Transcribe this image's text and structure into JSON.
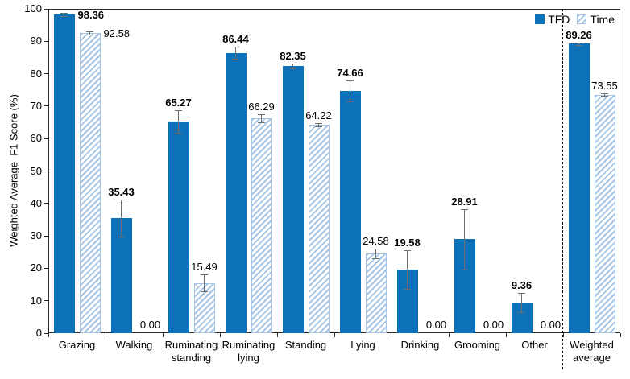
{
  "chart_data": {
    "type": "bar",
    "title": "",
    "xlabel": "",
    "ylabel": "Weighted Average  F1 Score (%)",
    "ylim": [
      0,
      100
    ],
    "ytick_step": 10,
    "grid": false,
    "legend_position": "top-right-inside",
    "categories": [
      "Grazing",
      "Walking",
      "Ruminating standing",
      "Ruminating lying",
      "Standing",
      "Lying",
      "Drinking",
      "Grooming",
      "Other",
      "Weighted average"
    ],
    "separator_before_category": "Weighted average",
    "value_label_decimals": 2,
    "series": [
      {
        "name": "TFD",
        "style": "solid",
        "color": "#0d71b9",
        "values": [
          98.36,
          35.43,
          65.27,
          86.44,
          82.35,
          74.66,
          19.58,
          28.91,
          9.36,
          89.26
        ],
        "errors": [
          0.5,
          5.7,
          3.5,
          1.9,
          0.8,
          3.2,
          6.0,
          9.3,
          3.0,
          0.4
        ],
        "label_pos": [
          "right",
          "above",
          "above",
          "above",
          "above",
          "above",
          "above",
          "above",
          "above",
          "above"
        ],
        "label_bold": true
      },
      {
        "name": "Time",
        "style": "hatched",
        "color": "#a6c4e5",
        "values": [
          92.58,
          0.0,
          15.49,
          66.29,
          64.22,
          24.58,
          0.0,
          0.0,
          0.0,
          73.55
        ],
        "errors": [
          0.4,
          0,
          2.6,
          1.2,
          0.5,
          1.5,
          0,
          0,
          0,
          0.4
        ],
        "label_pos": [
          "right",
          "above",
          "above",
          "above",
          "above",
          "above",
          "above",
          "above",
          "above",
          "above"
        ],
        "label_bold": false
      }
    ]
  },
  "colors": {
    "tfd_bar": "#0d71b9",
    "time_hatch": "#a6c4e5",
    "error_bar": "#6e6e6e",
    "axis": "#2b2b2b",
    "separator": "#000000",
    "background": "#ffffff"
  }
}
